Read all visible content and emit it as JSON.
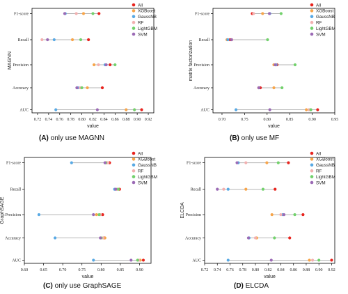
{
  "legend": [
    {
      "name": "All",
      "color": "#e8231d"
    },
    {
      "name": "XGBoost",
      "color": "#f7a54a"
    },
    {
      "name": "GaussNB",
      "color": "#58a9e4"
    },
    {
      "name": "RF",
      "color": "#f2b0b0"
    },
    {
      "name": "LightGBM",
      "color": "#72d16c"
    },
    {
      "name": "SVM",
      "color": "#9b6ab5"
    }
  ],
  "captions": [
    {
      "letter": "(A)",
      "text": " only use MAGNN"
    },
    {
      "letter": "(B)",
      "text": " only use MF"
    },
    {
      "letter": "(C)",
      "text": " only use GraphSAGE"
    },
    {
      "letter": "(D)",
      "text": " ELCDA"
    }
  ],
  "chart_data": [
    {
      "type": "dot-range",
      "ylabel": "MAGNN",
      "xlabel": "value",
      "categories": [
        "F1-score",
        "Recall",
        "Precision",
        "Accuracy",
        "AUC"
      ],
      "xlim": [
        0.71,
        0.93
      ],
      "xticks": [
        "0.72",
        "0.74",
        "0.76",
        "0.78",
        "0.80",
        "0.82",
        "0.84",
        "0.86",
        "0.88",
        "0.90",
        "0.92"
      ],
      "series": [
        {
          "name": "All",
          "values": [
            0.831,
            0.812,
            0.851,
            0.837,
            0.908
          ]
        },
        {
          "name": "XGBoost",
          "values": [
            0.803,
            0.783,
            0.822,
            0.81,
            0.88
          ]
        },
        {
          "name": "GaussNB",
          "values": [
            0.77,
            0.75,
            0.842,
            0.793,
            0.753
          ]
        },
        {
          "name": "RF",
          "values": [
            0.79,
            0.728,
            0.83,
            0.797,
            0.895
          ]
        },
        {
          "name": "LightGBM",
          "values": [
            0.82,
            0.798,
            0.86,
            0.8,
            0.895
          ]
        },
        {
          "name": "SVM",
          "values": [
            0.769,
            0.738,
            0.844,
            0.791,
            0.828
          ]
        }
      ]
    },
    {
      "type": "dot-range",
      "ylabel": "matrix factorization",
      "xlabel": "value",
      "categories": [
        "F1-score",
        "Recall",
        "Precision",
        "Accuracy",
        "AUC"
      ],
      "xlim": [
        0.68,
        0.95
      ],
      "xticks": [
        "0.70",
        "0.75",
        "0.80",
        "0.85",
        "0.90",
        "0.95"
      ],
      "series": [
        {
          "name": "All",
          "values": [
            0.767,
            0.718,
            0.822,
            0.785,
            0.912
          ]
        },
        {
          "name": "XGBoost",
          "values": [
            0.79,
            0.711,
            0.815,
            0.815,
            0.887
          ]
        },
        {
          "name": "GaussNB",
          "values": [
            0.806,
            0.713,
            0.82,
            0.781,
            0.731
          ]
        },
        {
          "name": "RF",
          "values": [
            0.77,
            0.722,
            0.818,
            0.781,
            0.893
          ]
        },
        {
          "name": "LightGBM",
          "values": [
            0.831,
            0.801,
            0.862,
            0.833,
            0.897
          ]
        },
        {
          "name": "SVM",
          "values": [
            0.805,
            0.721,
            0.818,
            0.782,
            0.806
          ]
        }
      ]
    },
    {
      "type": "dot-range",
      "ylabel": "GraphSAGE",
      "xlabel": "value",
      "categories": [
        "F1-score",
        "Recall",
        "Precision",
        "Accuracy",
        "AUC"
      ],
      "xlim": [
        0.6,
        0.93
      ],
      "xticks": [
        "0.60",
        "0.65",
        "0.70",
        "0.75",
        "0.80",
        "0.85",
        "0.90"
      ],
      "series": [
        {
          "name": "All",
          "values": [
            0.822,
            0.848,
            0.804,
            0.808,
            0.91
          ]
        },
        {
          "name": "XGBoost",
          "values": [
            0.815,
            0.843,
            0.788,
            0.81,
            0.902
          ]
        },
        {
          "name": "GaussNB",
          "values": [
            0.723,
            0.835,
            0.638,
            0.68,
            0.78
          ]
        },
        {
          "name": "RF",
          "values": [
            0.818,
            0.84,
            0.798,
            0.805,
            0.898
          ]
        },
        {
          "name": "LightGBM",
          "values": [
            0.812,
            0.845,
            0.795,
            0.8,
            0.895
          ]
        },
        {
          "name": "SVM",
          "values": [
            0.81,
            0.838,
            0.78,
            0.798,
            0.878
          ]
        }
      ]
    },
    {
      "type": "dot-range",
      "ylabel": "ELCDA",
      "xlabel": "value",
      "categories": [
        "F1-score",
        "Recall",
        "Precision",
        "Accuracy",
        "AUC"
      ],
      "xlim": [
        0.72,
        0.925
      ],
      "xticks": [
        "0.72",
        "0.74",
        "0.76",
        "0.78",
        "0.80",
        "0.82",
        "0.84",
        "0.86",
        "0.88",
        "0.90",
        "0.92"
      ],
      "series": [
        {
          "name": "All",
          "values": [
            0.852,
            0.831,
            0.875,
            0.854,
            0.92
          ]
        },
        {
          "name": "XGBoost",
          "values": [
            0.818,
            0.785,
            0.826,
            0.802,
            0.885
          ]
        },
        {
          "name": "GaussNB",
          "values": [
            0.773,
            0.757,
            0.843,
            0.79,
            0.757
          ]
        },
        {
          "name": "RF",
          "values": [
            0.785,
            0.75,
            0.84,
            0.8,
            0.89
          ]
        },
        {
          "name": "LightGBM",
          "values": [
            0.836,
            0.812,
            0.862,
            0.83,
            0.9
          ]
        },
        {
          "name": "SVM",
          "values": [
            0.771,
            0.74,
            0.845,
            0.789,
            0.825
          ]
        }
      ]
    }
  ]
}
